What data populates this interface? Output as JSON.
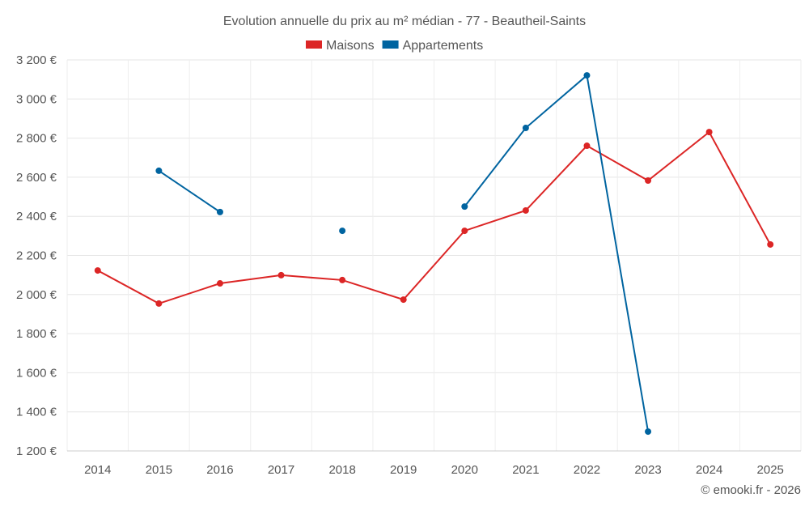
{
  "chart_data": {
    "type": "line",
    "title": "Evolution annuelle du prix au m² médian - 77 - Beautheil-Saints",
    "xlabel": "",
    "ylabel": "",
    "categories": [
      "2014",
      "2015",
      "2016",
      "2017",
      "2018",
      "2019",
      "2020",
      "2021",
      "2022",
      "2023",
      "2024",
      "2025"
    ],
    "ylim": [
      1200,
      3200
    ],
    "yticks": [
      1200,
      1400,
      1600,
      1800,
      2000,
      2200,
      2400,
      2600,
      2800,
      3000,
      3200
    ],
    "ytick_labels": [
      "1 200 €",
      "1 400 €",
      "1 600 €",
      "1 800 €",
      "2 000 €",
      "2 200 €",
      "2 400 €",
      "2 600 €",
      "2 800 €",
      "3 000 €",
      "3 200 €"
    ],
    "grid": true,
    "legend_position": "top-center",
    "series": [
      {
        "name": "Maisons",
        "color": "#dc2626",
        "values": [
          2123,
          1954,
          2057,
          2099,
          2074,
          1974,
          2326,
          2430,
          2761,
          2583,
          2831,
          2256
        ]
      },
      {
        "name": "Appartements",
        "color": "#0064a0",
        "values": [
          null,
          2633,
          2422,
          null,
          2326,
          null,
          2450,
          2852,
          3121,
          1299,
          null,
          null
        ]
      }
    ],
    "credit": "© emooki.fr - 2026"
  }
}
